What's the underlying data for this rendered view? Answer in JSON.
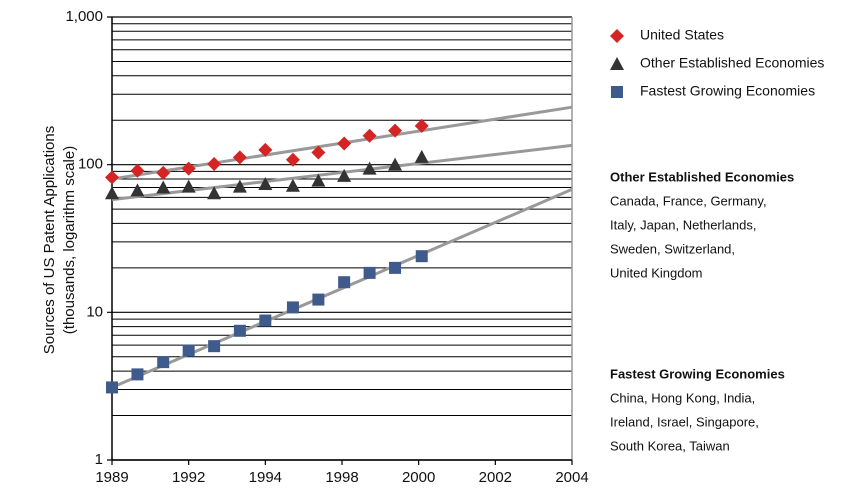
{
  "chart_data": {
    "type": "scatter",
    "y_label": [
      "Sources of US Patent Applications",
      "(thousands, logarithm scale)"
    ],
    "log_y": true,
    "ylim": [
      1,
      1000
    ],
    "yticks": [
      1,
      10,
      100,
      {
        "value": 1000,
        "label": "1,000"
      }
    ],
    "minor_grid": [
      2,
      3,
      4,
      5,
      6,
      7,
      8,
      9,
      20,
      30,
      40,
      50,
      60,
      70,
      80,
      90,
      200,
      300,
      400,
      500,
      600,
      700,
      800,
      900
    ],
    "xlim": [
      1989,
      2004
    ],
    "xticks": [
      {
        "value": 1989,
        "label": "1989"
      },
      {
        "value": 1991.5,
        "label": "1992"
      },
      {
        "value": 1994,
        "label": "1994"
      },
      {
        "value": 1996.5,
        "label": "1998"
      },
      {
        "value": 1999,
        "label": "2000"
      },
      {
        "value": 2001.5,
        "label": "2002"
      },
      {
        "value": 2004,
        "label": "2004"
      }
    ],
    "x": [
      1989,
      1989.83,
      1990.67,
      1991.5,
      1992.33,
      1993.17,
      1994,
      1994.9,
      1995.73,
      1996.57,
      1997.4,
      1998.23,
      1999.1
    ],
    "legend": "right",
    "series": [
      {
        "name": "United States",
        "color": "#d42424",
        "marker": "diamond",
        "values": [
          82,
          91,
          88,
          94,
          101,
          112,
          126,
          108,
          121,
          139,
          157,
          170,
          183
        ],
        "trend": {
          "x": [
            1989,
            2004
          ],
          "values": [
            80,
            245
          ]
        }
      },
      {
        "name": "Other Established Economies",
        "color": "#333333",
        "marker": "triangle",
        "values": [
          64,
          67,
          70,
          71,
          64,
          71,
          74,
          72,
          78,
          84,
          94,
          100,
          113
        ],
        "trend": {
          "x": [
            1989,
            2004
          ],
          "values": [
            58,
            135
          ]
        }
      },
      {
        "name": "Fastest Growing Economies",
        "color": "#3f5b8c",
        "marker": "square",
        "values": [
          3.1,
          3.8,
          4.6,
          5.5,
          5.9,
          7.5,
          8.8,
          10.8,
          12.2,
          16,
          18.5,
          20,
          24
        ],
        "trend": {
          "x": [
            1989,
            2004
          ],
          "values": [
            3.1,
            68
          ]
        }
      }
    ],
    "annotations": [
      {
        "title": "Other Established Economies",
        "lines": [
          "Canada, France, Germany,",
          "Italy, Japan, Netherlands,",
          "Sweden, Switzerland,",
          "United Kingdom"
        ]
      },
      {
        "title": "Fastest Growing Economies",
        "lines": [
          "China, Hong Kong, India,",
          "Ireland, Israel, Singapore,",
          "South Korea, Taiwan"
        ]
      }
    ]
  }
}
